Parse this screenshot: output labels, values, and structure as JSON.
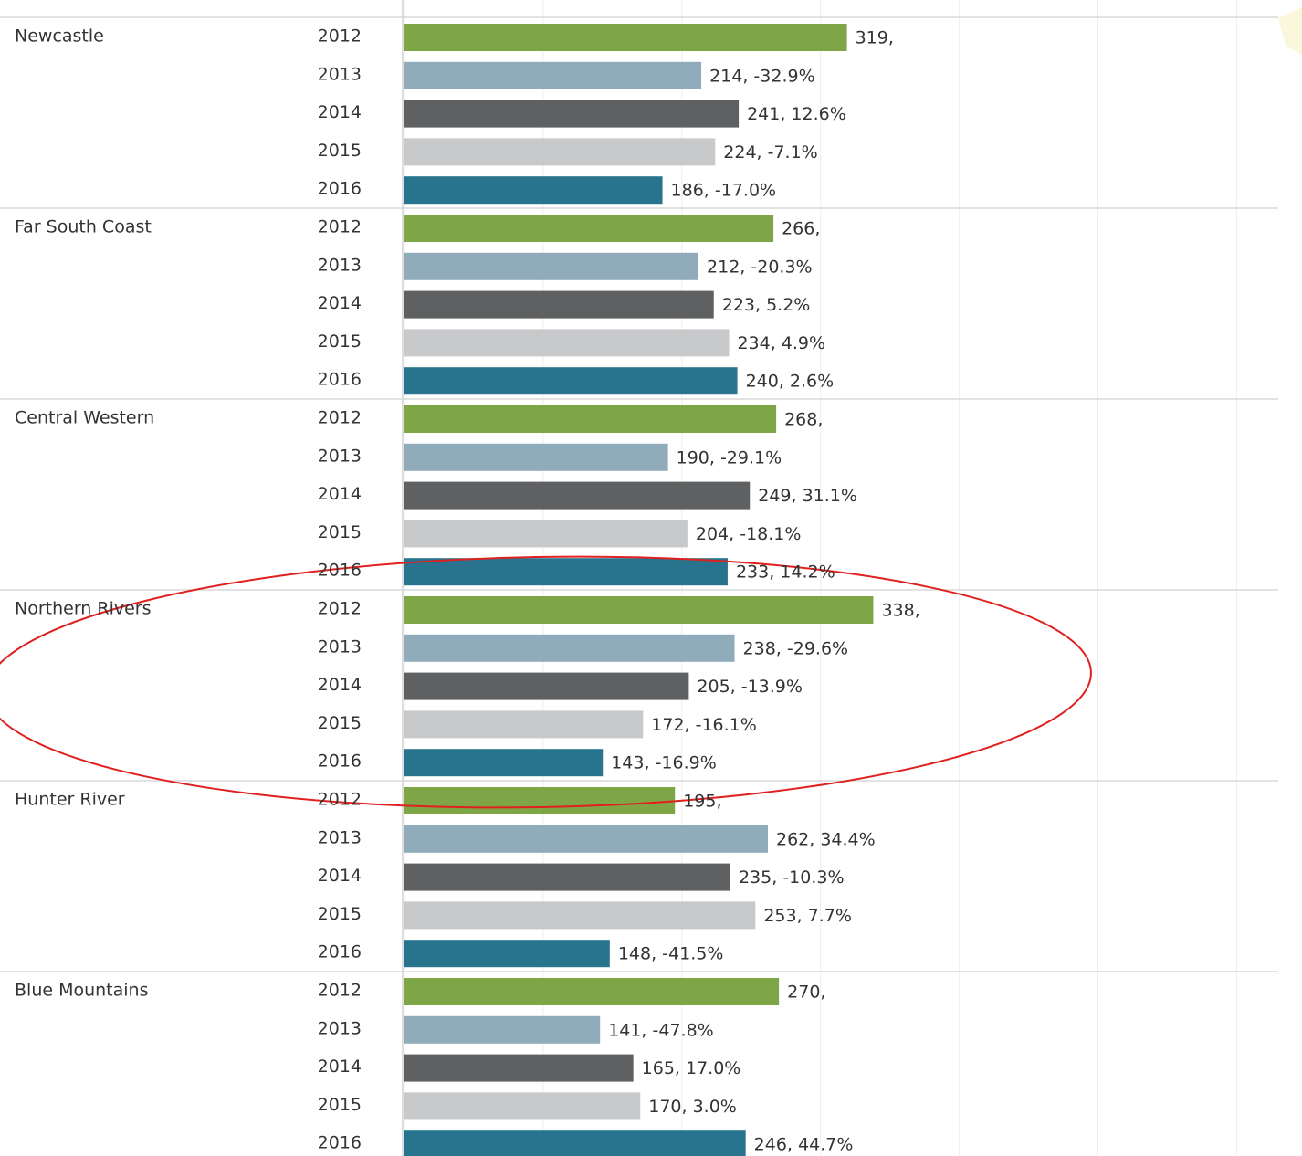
{
  "chart_data": {
    "type": "bar",
    "orientation": "horizontal",
    "colors": [
      "#7ea646",
      "#90acbb",
      "#5f6062",
      "#c8c9ca",
      "#28748e"
    ],
    "xlim": [
      0,
      630
    ],
    "xticks": [
      0,
      100,
      200,
      300,
      400,
      500,
      600
    ],
    "grid": true,
    "groups": [
      {
        "name": "Newcastle",
        "categories": [
          "2012",
          "2013",
          "2014",
          "2015",
          "2016"
        ],
        "values": [
          319,
          214,
          241,
          224,
          186
        ],
        "value_labels": [
          "319,",
          "214, -32.9%",
          "241, 12.6%",
          "224, -7.1%",
          "186, -17.0%"
        ]
      },
      {
        "name": "Far South Coast",
        "categories": [
          "2012",
          "2013",
          "2014",
          "2015",
          "2016"
        ],
        "values": [
          266,
          212,
          223,
          234,
          240
        ],
        "value_labels": [
          "266,",
          "212, -20.3%",
          "223, 5.2%",
          "234, 4.9%",
          "240, 2.6%"
        ]
      },
      {
        "name": "Central Western",
        "categories": [
          "2012",
          "2013",
          "2014",
          "2015",
          "2016"
        ],
        "values": [
          268,
          190,
          249,
          204,
          233
        ],
        "value_labels": [
          "268,",
          "190, -29.1%",
          "249, 31.1%",
          "204, -18.1%",
          "233, 14.2%"
        ]
      },
      {
        "name": "Northern Rivers",
        "categories": [
          "2012",
          "2013",
          "2014",
          "2015",
          "2016"
        ],
        "values": [
          338,
          238,
          205,
          172,
          143
        ],
        "value_labels": [
          "338,",
          "238, -29.6%",
          "205, -13.9%",
          "172, -16.1%",
          "143, -16.9%"
        ]
      },
      {
        "name": "Hunter River",
        "categories": [
          "2012",
          "2013",
          "2014",
          "2015",
          "2016"
        ],
        "values": [
          195,
          262,
          235,
          253,
          148
        ],
        "value_labels": [
          "195,",
          "262, 34.4%",
          "235, -10.3%",
          "253, 7.7%",
          "148, -41.5%"
        ]
      },
      {
        "name": "Blue Mountains",
        "categories": [
          "2012",
          "2013",
          "2014",
          "2015",
          "2016"
        ],
        "values": [
          270,
          141,
          165,
          170,
          246
        ],
        "value_labels": [
          "270,",
          "141, -47.8%",
          "165, 17.0%",
          "170, 3.0%",
          "246, 44.7%"
        ]
      }
    ]
  }
}
